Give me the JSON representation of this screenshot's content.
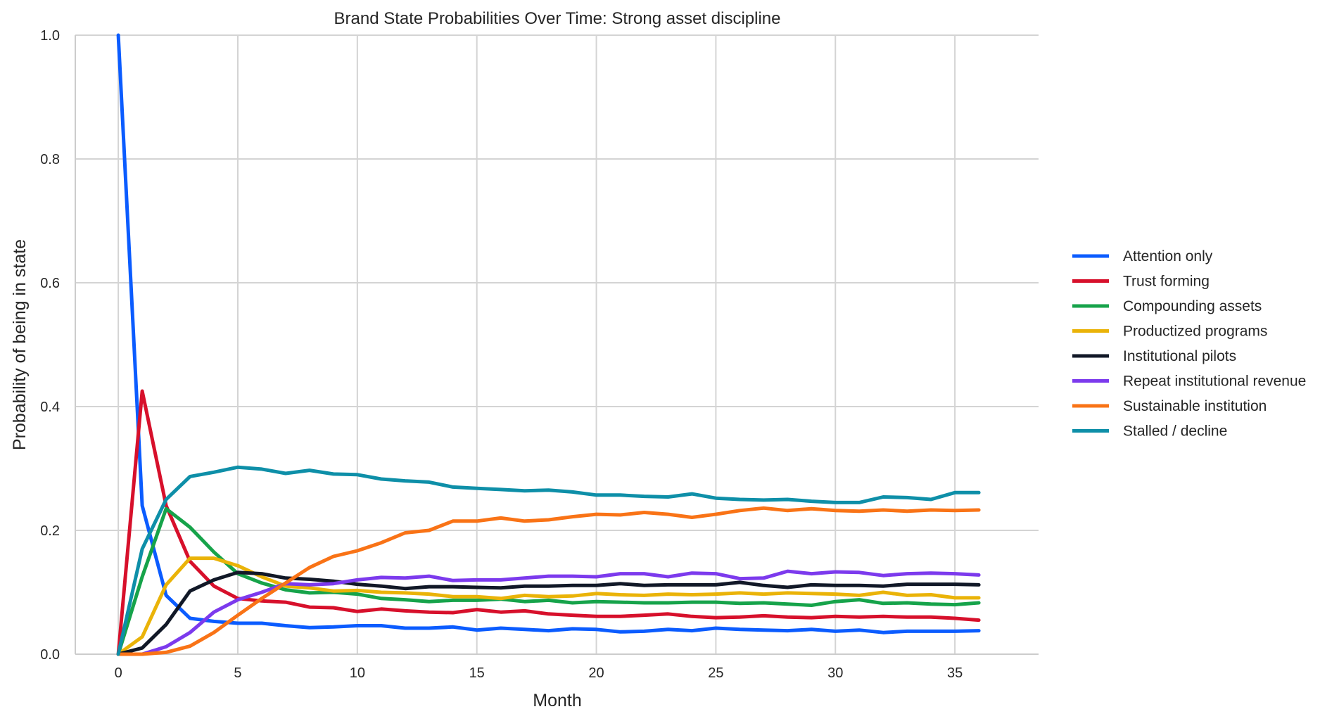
{
  "chart_data": {
    "type": "line",
    "title": "Brand State Probabilities Over Time: Strong asset discipline",
    "xlabel": "Month",
    "ylabel": "Probability of being in state",
    "xlim": [
      -1.8,
      38.5
    ],
    "ylim": [
      0.0,
      1.0
    ],
    "x_ticks": [
      0,
      5,
      10,
      15,
      20,
      25,
      30,
      35
    ],
    "y_ticks": [
      0.0,
      0.2,
      0.4,
      0.6,
      0.8,
      1.0
    ],
    "x_tick_labels": [
      "0",
      "5",
      "10",
      "15",
      "20",
      "25",
      "30",
      "35"
    ],
    "y_tick_labels": [
      "0.0",
      "0.2",
      "0.4",
      "0.6",
      "0.8",
      "1.0"
    ],
    "grid": true,
    "legend_position": "right",
    "x": [
      0,
      1,
      2,
      3,
      4,
      5,
      6,
      7,
      8,
      9,
      10,
      11,
      12,
      13,
      14,
      15,
      16,
      17,
      18,
      19,
      20,
      21,
      22,
      23,
      24,
      25,
      26,
      27,
      28,
      29,
      30,
      31,
      32,
      33,
      34,
      35,
      36
    ],
    "series": [
      {
        "name": "Attention only",
        "color": "#0b5cff",
        "values": [
          1.0,
          0.24,
          0.095,
          0.058,
          0.053,
          0.05,
          0.05,
          0.046,
          0.043,
          0.044,
          0.046,
          0.046,
          0.042,
          0.042,
          0.044,
          0.039,
          0.042,
          0.04,
          0.038,
          0.041,
          0.04,
          0.036,
          0.037,
          0.04,
          0.038,
          0.042,
          0.04,
          0.039,
          0.038,
          0.04,
          0.037,
          0.039,
          0.035,
          0.037,
          0.037,
          0.037,
          0.038
        ]
      },
      {
        "name": "Trust forming",
        "color": "#d7102b",
        "values": [
          0.0,
          0.425,
          0.24,
          0.15,
          0.11,
          0.09,
          0.086,
          0.084,
          0.076,
          0.075,
          0.069,
          0.073,
          0.07,
          0.068,
          0.067,
          0.072,
          0.068,
          0.07,
          0.065,
          0.063,
          0.061,
          0.061,
          0.063,
          0.065,
          0.061,
          0.059,
          0.06,
          0.062,
          0.06,
          0.059,
          0.061,
          0.06,
          0.061,
          0.06,
          0.06,
          0.058,
          0.055
        ]
      },
      {
        "name": "Compounding assets",
        "color": "#16a34a",
        "values": [
          0.0,
          0.125,
          0.235,
          0.205,
          0.165,
          0.13,
          0.115,
          0.104,
          0.099,
          0.1,
          0.097,
          0.09,
          0.088,
          0.085,
          0.087,
          0.087,
          0.089,
          0.085,
          0.087,
          0.083,
          0.085,
          0.084,
          0.083,
          0.083,
          0.084,
          0.084,
          0.082,
          0.083,
          0.081,
          0.079,
          0.085,
          0.088,
          0.082,
          0.083,
          0.081,
          0.08,
          0.083
        ]
      },
      {
        "name": "Productized programs",
        "color": "#eab308",
        "values": [
          0.0,
          0.028,
          0.112,
          0.155,
          0.155,
          0.143,
          0.125,
          0.11,
          0.107,
          0.102,
          0.103,
          0.1,
          0.099,
          0.097,
          0.093,
          0.093,
          0.09,
          0.095,
          0.093,
          0.094,
          0.098,
          0.096,
          0.095,
          0.097,
          0.096,
          0.097,
          0.099,
          0.097,
          0.099,
          0.098,
          0.097,
          0.095,
          0.1,
          0.095,
          0.096,
          0.091,
          0.091
        ]
      },
      {
        "name": "Institutional pilots",
        "color": "#111827",
        "values": [
          0.0,
          0.01,
          0.048,
          0.102,
          0.12,
          0.132,
          0.13,
          0.123,
          0.121,
          0.118,
          0.113,
          0.11,
          0.106,
          0.109,
          0.109,
          0.108,
          0.107,
          0.11,
          0.11,
          0.111,
          0.111,
          0.114,
          0.111,
          0.112,
          0.112,
          0.112,
          0.116,
          0.111,
          0.108,
          0.112,
          0.111,
          0.111,
          0.11,
          0.113,
          0.113,
          0.113,
          0.112
        ]
      },
      {
        "name": "Repeat institutional revenue",
        "color": "#7c3aed",
        "values": [
          0.0,
          0.0,
          0.012,
          0.035,
          0.068,
          0.088,
          0.1,
          0.114,
          0.112,
          0.114,
          0.12,
          0.124,
          0.123,
          0.126,
          0.119,
          0.12,
          0.12,
          0.123,
          0.126,
          0.126,
          0.125,
          0.13,
          0.13,
          0.125,
          0.131,
          0.13,
          0.122,
          0.123,
          0.134,
          0.13,
          0.133,
          0.132,
          0.127,
          0.13,
          0.131,
          0.13,
          0.128
        ]
      },
      {
        "name": "Sustainable institution",
        "color": "#f97316",
        "values": [
          0.0,
          0.0,
          0.003,
          0.013,
          0.035,
          0.063,
          0.09,
          0.115,
          0.14,
          0.158,
          0.167,
          0.18,
          0.196,
          0.2,
          0.215,
          0.215,
          0.22,
          0.215,
          0.217,
          0.222,
          0.226,
          0.225,
          0.229,
          0.226,
          0.221,
          0.226,
          0.232,
          0.236,
          0.232,
          0.235,
          0.232,
          0.231,
          0.233,
          0.231,
          0.233,
          0.232,
          0.233
        ]
      },
      {
        "name": "Stalled / decline",
        "color": "#0e8fa8",
        "values": [
          0.0,
          0.17,
          0.25,
          0.287,
          0.294,
          0.302,
          0.299,
          0.292,
          0.297,
          0.291,
          0.29,
          0.283,
          0.28,
          0.278,
          0.27,
          0.268,
          0.266,
          0.264,
          0.265,
          0.262,
          0.257,
          0.257,
          0.255,
          0.254,
          0.259,
          0.252,
          0.25,
          0.249,
          0.25,
          0.247,
          0.245,
          0.245,
          0.254,
          0.253,
          0.25,
          0.261,
          0.261
        ]
      }
    ]
  }
}
